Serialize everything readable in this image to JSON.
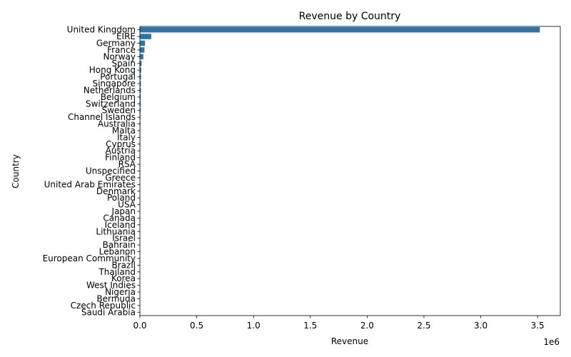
{
  "chart_data": {
    "type": "bar",
    "orientation": "horizontal",
    "title": "Revenue by Country",
    "xlabel": "Revenue",
    "ylabel": "Country",
    "x_offset_label": "1e6",
    "xlim": [
      0,
      3.7
    ],
    "x_ticks": [
      0,
      0.5,
      1.0,
      1.5,
      2.0,
      2.5,
      3.0,
      3.5
    ],
    "x_tick_labels": [
      "0.0",
      "0.5",
      "1.0",
      "1.5",
      "2.0",
      "2.5",
      "3.0",
      "3.5"
    ],
    "bar_color": "#2e75a6",
    "grid": false,
    "categories": [
      "United Kingdom",
      "EIRE",
      "Germany",
      "France",
      "Norway",
      "Spain",
      "Hong Kong",
      "Portugal",
      "Singapore",
      "Netherlands",
      "Belgium",
      "Switzerland",
      "Sweden",
      "Channel Islands",
      "Australia",
      "Malta",
      "Italy",
      "Cyprus",
      "Austria",
      "Finland",
      "RSA",
      "Unspecified",
      "Greece",
      "United Arab Emirates",
      "Denmark",
      "Poland",
      "USA",
      "Japan",
      "Canada",
      "Iceland",
      "Lithuania",
      "Israel",
      "Bahrain",
      "Lebanon",
      "European Community",
      "Brazil",
      "Thailand",
      "Korea",
      "West Indies",
      "Nigeria",
      "Bermuda",
      "Czech Republic",
      "Saudi Arabia"
    ],
    "values": [
      3.52,
      0.1,
      0.045,
      0.04,
      0.03,
      0.015,
      0.012,
      0.01,
      0.009,
      0.009,
      0.008,
      0.008,
      0.007,
      0.005,
      0.005,
      0.004,
      0.004,
      0.004,
      0.003,
      0.003,
      0.003,
      0.003,
      0.003,
      0.002,
      0.002,
      0.002,
      0.002,
      0.002,
      0.002,
      0.001,
      0.001,
      0.001,
      0.001,
      0.001,
      0.001,
      0.001,
      0.001,
      0.001,
      0.0005,
      0.0005,
      0.0005,
      0.0005,
      0.0005
    ]
  }
}
